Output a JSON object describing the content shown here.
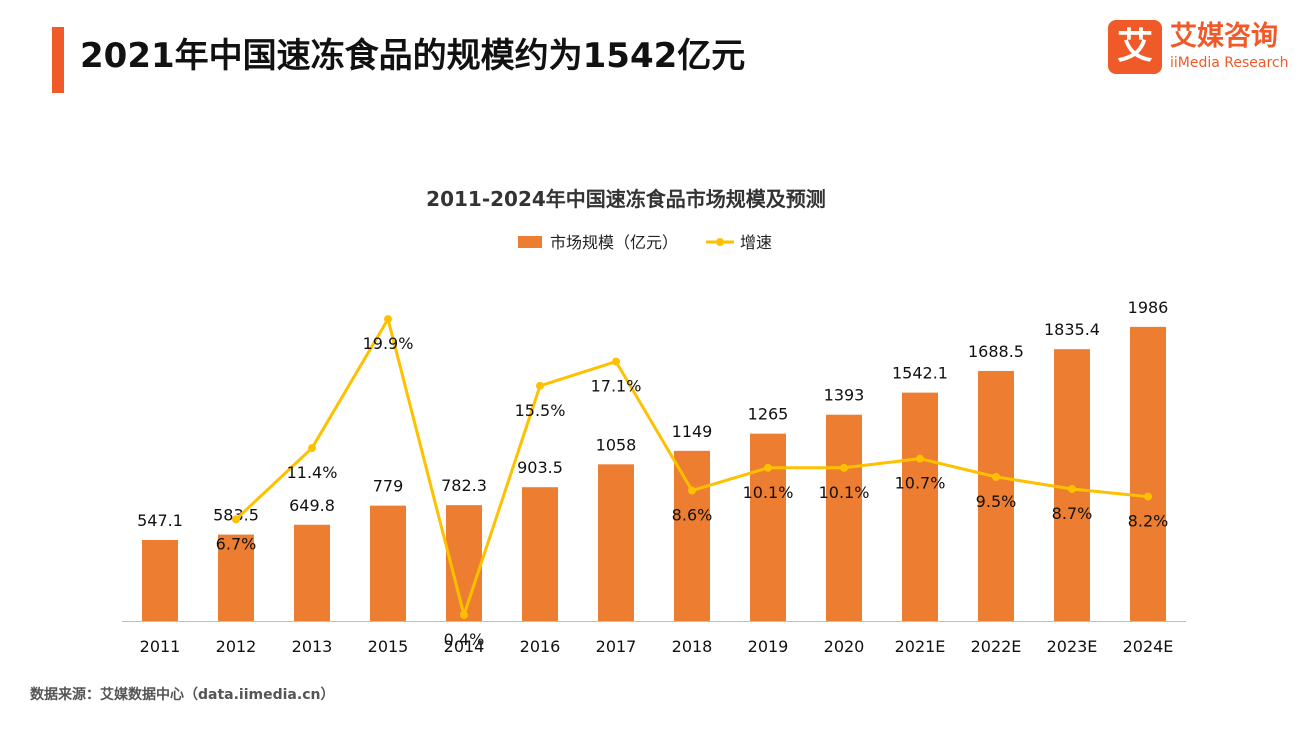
{
  "header": {
    "title": "2021年中国速冻食品的规模约为1542亿元",
    "accent_color": "#f05a28"
  },
  "logo": {
    "mark": "艾",
    "name_cn": "艾媒咨询",
    "name_en": "iiMedia Research"
  },
  "source": "数据来源：艾媒数据中心（data.iimedia.cn）",
  "chart_data": {
    "type": "bar",
    "title": "2011-2024年中国速冻食品市场规模及预测",
    "categories": [
      "2011",
      "2012",
      "2013",
      "2015",
      "2014",
      "2016",
      "2017",
      "2018",
      "2019",
      "2020",
      "2021E",
      "2022E",
      "2023E",
      "2024E"
    ],
    "series": [
      {
        "name": "市场规模（亿元）",
        "type": "bar",
        "color": "#ed7d31",
        "values": [
          547.1,
          583.5,
          649.8,
          779,
          782.3,
          903.5,
          1058,
          1149,
          1265,
          1393,
          1542.1,
          1688.5,
          1835.4,
          1986
        ],
        "labels": [
          "547.1",
          "583.5",
          "649.8",
          "779",
          "782.3",
          "903.5",
          "1058",
          "1149",
          "1265",
          "1393",
          "1542.1",
          "1688.5",
          "1835.4",
          "1986"
        ]
      },
      {
        "name": "增速",
        "type": "line",
        "color": "#ffc000",
        "values": [
          null,
          6.7,
          11.4,
          19.9,
          0.4,
          15.5,
          17.1,
          8.6,
          10.1,
          10.1,
          10.7,
          9.5,
          8.7,
          8.2
        ],
        "labels": [
          "",
          "6.7%",
          "11.4%",
          "19.9%",
          "0.4%",
          "15.5%",
          "17.1%",
          "8.6%",
          "10.1%",
          "10.1%",
          "10.7%",
          "9.5%",
          "8.7%",
          "8.2%"
        ]
      }
    ],
    "y_range": [
      0,
      2100
    ],
    "y2_range": [
      0,
      20.5
    ],
    "legend_position": "top-center",
    "grid": false
  }
}
